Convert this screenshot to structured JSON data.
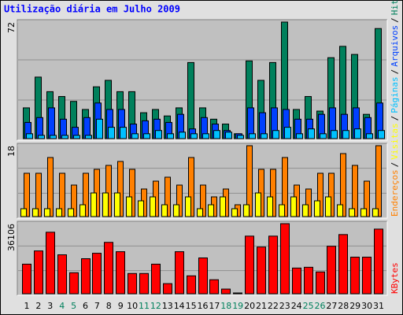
{
  "chart_data": {
    "type": "bar",
    "title": "Utilização diária em Julho 2009",
    "legend_separator": "/",
    "categories": [
      "1",
      "2",
      "3",
      "4",
      "5",
      "6",
      "7",
      "8",
      "9",
      "10",
      "11",
      "12",
      "13",
      "14",
      "15",
      "16",
      "17",
      "18",
      "19",
      "20",
      "21",
      "22",
      "23",
      "24",
      "25",
      "26",
      "27",
      "28",
      "29",
      "30",
      "31"
    ],
    "category_colors": [
      "#000000",
      "#000000",
      "#000000",
      "#00805c",
      "#00805c",
      "#000000",
      "#000000",
      "#000000",
      "#000000",
      "#000000",
      "#00805c",
      "#00805c",
      "#000000",
      "#000000",
      "#000000",
      "#000000",
      "#000000",
      "#00805c",
      "#00805c",
      "#000000",
      "#000000",
      "#000000",
      "#000000",
      "#000000",
      "#00805c",
      "#00805c",
      "#000000",
      "#000000",
      "#000000",
      "#000000",
      "#000000"
    ],
    "panels": [
      {
        "ylim": [
          0,
          72
        ],
        "yticks": [
          72
        ],
        "series": [
          {
            "name": "Hits",
            "color": "#00805c",
            "values": [
              19,
              38,
              29,
              26,
              23,
              18,
              32,
              36,
              29,
              29,
              16,
              18,
              14,
              19,
              47,
              19,
              12,
              9,
              3,
              48,
              36,
              47,
              72,
              18,
              26,
              17,
              50,
              57,
              52,
              15,
              68
            ]
          },
          {
            "name": "Arquivos",
            "color": "#0040ff",
            "values": [
              10,
              13,
              19,
              12,
              7,
              13,
              22,
              18,
              18,
              9,
              11,
              12,
              10,
              15,
              6,
              13,
              9,
              5,
              3,
              19,
              16,
              19,
              18,
              12,
              12,
              15,
              19,
              15,
              19,
              13,
              22
            ]
          },
          {
            "name": "Páginas",
            "color": "#00c0ff",
            "values": [
              3,
              2,
              2,
              2,
              2,
              2,
              12,
              7,
              7,
              3,
              3,
              5,
              3,
              4,
              3,
              3,
              5,
              4,
              2,
              3,
              3,
              5,
              7,
              3,
              6,
              3,
              5,
              5,
              6,
              3,
              5
            ]
          }
        ]
      },
      {
        "ylim": [
          0,
          18
        ],
        "yticks": [
          18
        ],
        "series": [
          {
            "name": "Endereços",
            "color": "#ff8000",
            "values": [
              11,
              11,
              15,
              11,
              8,
              11,
              12,
              13,
              14,
              12,
              7,
              9,
              10,
              8,
              15,
              8,
              5,
              7,
              3,
              18,
              12,
              12,
              15,
              8,
              7,
              11,
              11,
              16,
              13,
              9,
              18
            ]
          },
          {
            "name": "Visitas",
            "color": "#ffff00",
            "values": [
              2,
              2,
              2,
              2,
              2,
              3,
              6,
              6,
              6,
              5,
              4,
              5,
              3,
              3,
              5,
              2,
              3,
              5,
              2,
              3,
              6,
              5,
              3,
              5,
              3,
              4,
              5,
              3,
              2,
              2,
              2
            ]
          }
        ]
      },
      {
        "ylim": [
          0,
          36106
        ],
        "yticks": [
          36106
        ],
        "series": [
          {
            "name": "KBytes",
            "color": "#ff0000",
            "values": [
              15245,
              22065,
              31693,
              20059,
              10832,
              18053,
              20861,
              26478,
              21664,
              10431,
              10431,
              15245,
              5215,
              21664,
              9227,
              18454,
              7221,
              2407,
              400,
              29687,
              24071,
              29687,
              36106,
              13239,
              13640,
              11233,
              24472,
              30489,
              18855,
              18855,
              33298
            ]
          }
        ]
      }
    ]
  }
}
